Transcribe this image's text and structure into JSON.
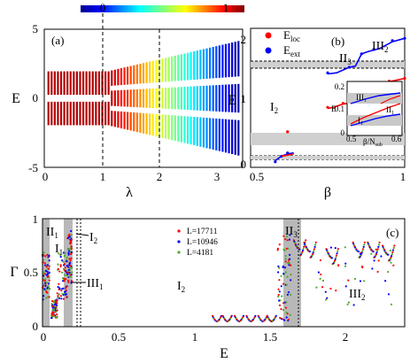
{
  "colorbar": {
    "min_label": "0",
    "max_label": "1"
  },
  "chart_data": [
    {
      "type": "scatter",
      "panel_label": "(a)",
      "xlabel": "λ",
      "ylabel": "E",
      "xlim": [
        0,
        3
      ],
      "ylim": [
        -5,
        5
      ],
      "xticks": [
        "0",
        "1",
        "2",
        "3"
      ],
      "yticks": [
        "5",
        "0",
        "-5"
      ],
      "dashed_lines_x": [
        1,
        2
      ],
      "series": [
        {
          "values": [
            {
              "lam_range": [
                0,
                1
              ],
              "E": [
                1.55,
                0.9,
                0.35,
                -0.35,
                -0.9,
                -1.55
              ]
            },
            {
              "lam_range": [
                1,
                2
              ],
              "E_low": [
                1.45,
                -0.7,
                -2.05
              ],
              "E_high": [
                2.05,
                0.7,
                -1.45
              ]
            },
            {
              "lam_range": [
                2,
                3
              ],
              "E_low": [
                1.3,
                -1.0,
                -3.1
              ],
              "E_high": [
                3.1,
                1.0,
                -1.3
              ]
            }
          ]
        }
      ],
      "colormap": "jet"
    },
    {
      "type": "line",
      "panel_label": "(b)",
      "xlabel": "β",
      "ylabel": "E",
      "xlim": [
        0.5,
        1
      ],
      "ylim": [
        0,
        2.5
      ],
      "xticks": [
        "0.5",
        "1"
      ],
      "yticks": [
        "2",
        "1",
        "0"
      ],
      "legend": [
        "E_loc",
        "E_ext"
      ],
      "legend_colors": [
        "#ff0000",
        "#0000ff"
      ],
      "regions": [
        "I_2",
        "II_3",
        "III_2"
      ],
      "series": [
        {
          "name": "E_loc",
          "color": "#ff0000",
          "x": [
            0.62,
            0.75,
            0.8,
            0.85,
            0.9,
            0.95,
            1.0
          ],
          "y": [
            0.64,
            1.08,
            1.15,
            1.38,
            1.46,
            1.55,
            1.6
          ]
        },
        {
          "name": "E_ext",
          "color": "#0000ff",
          "x": [
            0.58,
            0.6,
            0.62,
            0.75,
            0.82,
            0.86,
            0.9,
            0.96,
            1.0
          ],
          "y": [
            0.1,
            0.2,
            0.26,
            1.7,
            1.8,
            2.04,
            2.12,
            2.28,
            2.32
          ]
        }
      ],
      "inset": {
        "xlabel": "β/N_sub",
        "ylabel": "E",
        "xticks": [
          "0.5",
          "0.6"
        ],
        "yticks": [
          "0.2",
          "0.1",
          "0"
        ],
        "regions": [
          "III_1",
          "II_1",
          "I_1"
        ]
      }
    },
    {
      "type": "scatter",
      "panel_label": "(c)",
      "xlabel": "E",
      "ylabel": "Γ",
      "xlim": [
        0,
        2.45
      ],
      "ylim": [
        0,
        1
      ],
      "xticks": [
        "0",
        "0.5",
        "1",
        "1.5",
        "2"
      ],
      "yticks": [
        "1",
        "0.5",
        "0"
      ],
      "legend": [
        "L=17711",
        "L=10946",
        "L=4181"
      ],
      "series": [
        {
          "name": "L=17711",
          "color": "#ff0000"
        },
        {
          "name": "L=10946",
          "color": "#0000ff"
        },
        {
          "name": "L=4181",
          "color": "#4fa82a"
        }
      ],
      "shaded_regions_E": [
        [
          0,
          0.05
        ],
        [
          0.1,
          0.17
        ],
        [
          1.59,
          1.68
        ]
      ],
      "region_labels": [
        "II_1",
        "I_1",
        "I_2",
        "III_1",
        "I_2",
        "II_3",
        "III_2"
      ]
    }
  ]
}
